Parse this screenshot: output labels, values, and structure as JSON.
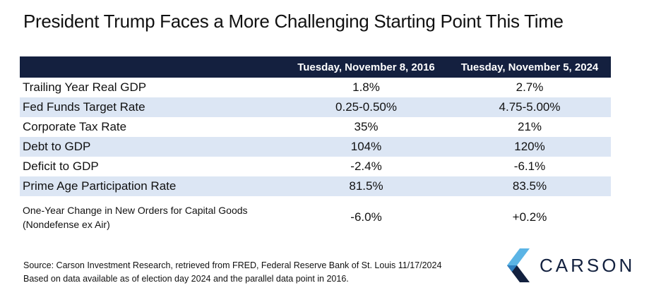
{
  "title": "President Trump Faces a More Challenging Starting Point This Time",
  "chart_data": {
    "type": "table",
    "columns": [
      "",
      "Tuesday, November 8, 2016",
      "Tuesday, November 5, 2024"
    ],
    "rows": [
      {
        "label": "Trailing Year Real GDP",
        "v2016": "1.8%",
        "v2024": "2.7%"
      },
      {
        "label": "Fed Funds Target Rate",
        "v2016": "0.25-0.50%",
        "v2024": "4.75-5.00%"
      },
      {
        "label": "Corporate Tax Rate",
        "v2016": "35%",
        "v2024": "21%"
      },
      {
        "label": "Debt to GDP",
        "v2016": "104%",
        "v2024": "120%"
      },
      {
        "label": "Deficit to GDP",
        "v2016": "-2.4%",
        "v2024": "-6.1%"
      },
      {
        "label": "Prime Age Participation Rate",
        "v2016": "81.5%",
        "v2024": "83.5%"
      },
      {
        "label": "One-Year Change in New Orders for Capital Goods (Nondefense ex Air)",
        "v2016": "-6.0%",
        "v2024": "+0.2%"
      }
    ]
  },
  "source_line1": "Source: Carson Investment Research, retrieved from FRED, Federal Reserve Bank of St. Louis 11/17/2024",
  "source_line2": "Based on data available as of election day 2024 and the parallel data point in 2016.",
  "logo": {
    "text": "CARSON",
    "icon": "carson-chevron-logo-icon"
  },
  "colors": {
    "header_bg": "#14203f",
    "row_shade": "#dce6f4",
    "logo_light": "#5bb4e5",
    "logo_dark": "#13213f"
  }
}
